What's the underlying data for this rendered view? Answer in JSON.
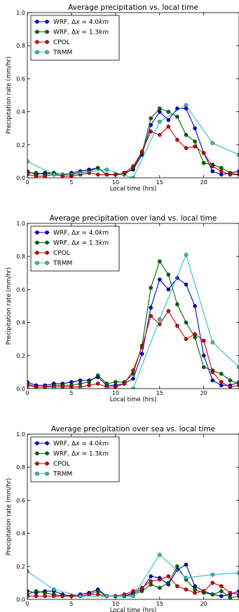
{
  "chart_data": [
    {
      "type": "line",
      "title": "Average precipitation vs. local time",
      "xlabel": "Local time (hrs)",
      "ylabel": "Precipitation rate (mm/hr)",
      "xlim": [
        0,
        24
      ],
      "ylim": [
        0,
        1.0
      ],
      "xticks": [
        "0",
        "5",
        "10",
        "15",
        "20"
      ],
      "yticks": [
        "0.0",
        "0.2",
        "0.4",
        "0.6",
        "0.8",
        "1.0"
      ],
      "legend_position": "top-left",
      "series": [
        {
          "name": "WRF, Δx = 4.0km",
          "color": "#0000cc",
          "x": [
            0,
            1,
            2,
            3,
            4,
            5,
            6,
            7,
            8,
            9,
            10,
            11,
            12,
            13,
            14,
            15,
            16,
            17,
            18,
            19,
            20,
            21,
            22,
            23,
            24
          ],
          "y": [
            0.04,
            0.02,
            0.03,
            0.03,
            0.02,
            0.03,
            0.04,
            0.05,
            0.06,
            0.02,
            0.02,
            0.03,
            0.05,
            0.14,
            0.32,
            0.4,
            0.35,
            0.42,
            0.42,
            0.3,
            0.15,
            0.04,
            0.02,
            0.03,
            0.04
          ]
        },
        {
          "name": "WRF, Δx = 1.3km",
          "color": "#006600",
          "x": [
            0,
            1,
            2,
            3,
            4,
            5,
            6,
            7,
            8,
            9,
            10,
            11,
            12,
            13,
            14,
            15,
            16,
            17,
            18,
            19,
            20,
            21,
            22,
            23,
            24
          ],
          "y": [
            0.03,
            0.03,
            0.02,
            0.03,
            0.02,
            0.02,
            0.03,
            0.04,
            0.06,
            0.02,
            0.02,
            0.02,
            0.06,
            0.15,
            0.36,
            0.42,
            0.4,
            0.37,
            0.26,
            0.22,
            0.09,
            0.08,
            0.06,
            0.03,
            0.02
          ]
        },
        {
          "name": "CPOL",
          "color": "#cc0000",
          "x": [
            0,
            1,
            2,
            3,
            4,
            5,
            6,
            7,
            8,
            9,
            10,
            11,
            12,
            13,
            14,
            15,
            16,
            17,
            18,
            19,
            20,
            21,
            22,
            23,
            24
          ],
          "y": [
            0.02,
            0.01,
            0.01,
            0.02,
            0.01,
            0.01,
            0.02,
            0.03,
            0.02,
            0.02,
            0.02,
            0.03,
            0.07,
            0.16,
            0.28,
            0.26,
            0.31,
            0.23,
            0.18,
            0.19,
            0.15,
            0.07,
            0.04,
            0.02,
            0.02
          ]
        },
        {
          "name": "TRMM",
          "color": "#33bbbb",
          "x": [
            0,
            3,
            6,
            9,
            12,
            15,
            18,
            21,
            24
          ],
          "y": [
            0.1,
            0.02,
            0.03,
            0.05,
            0.0,
            0.34,
            0.44,
            0.21,
            0.14
          ]
        }
      ]
    },
    {
      "type": "line",
      "title": "Average precipitation over land vs. local time",
      "xlabel": "Local time (hrs)",
      "ylabel": "Precipitation rate (mm/hr)",
      "xlim": [
        0,
        24
      ],
      "ylim": [
        0,
        1.0
      ],
      "xticks": [
        "0",
        "5",
        "10",
        "15",
        "20"
      ],
      "yticks": [
        "0.0",
        "0.2",
        "0.4",
        "0.6",
        "0.8",
        "1.0"
      ],
      "legend_position": "top-left",
      "series": [
        {
          "name": "WRF, Δx = 4.0km",
          "color": "#0000cc",
          "x": [
            0,
            1,
            2,
            3,
            4,
            5,
            6,
            7,
            8,
            9,
            10,
            11,
            12,
            13,
            14,
            15,
            16,
            17,
            18,
            19,
            20,
            21,
            22,
            23,
            24
          ],
          "y": [
            0.04,
            0.02,
            0.02,
            0.03,
            0.03,
            0.04,
            0.05,
            0.05,
            0.07,
            0.02,
            0.02,
            0.03,
            0.06,
            0.21,
            0.49,
            0.66,
            0.6,
            0.67,
            0.63,
            0.5,
            0.2,
            0.05,
            0.02,
            0.02,
            0.04
          ]
        },
        {
          "name": "WRF, Δx = 1.3km",
          "color": "#006600",
          "x": [
            0,
            1,
            2,
            3,
            4,
            5,
            6,
            7,
            8,
            9,
            10,
            11,
            12,
            13,
            14,
            15,
            16,
            17,
            18,
            19,
            20,
            21,
            22,
            23,
            24
          ],
          "y": [
            0.03,
            0.01,
            0.01,
            0.02,
            0.02,
            0.02,
            0.03,
            0.04,
            0.08,
            0.03,
            0.04,
            0.04,
            0.09,
            0.26,
            0.61,
            0.77,
            0.69,
            0.51,
            0.4,
            0.31,
            0.13,
            0.11,
            0.09,
            0.05,
            0.03
          ]
        },
        {
          "name": "CPOL",
          "color": "#cc0000",
          "x": [
            0,
            1,
            2,
            3,
            4,
            5,
            6,
            7,
            8,
            9,
            10,
            11,
            12,
            13,
            14,
            15,
            16,
            17,
            18,
            19,
            20,
            21,
            22,
            23,
            24
          ],
          "y": [
            0.02,
            0.01,
            0.01,
            0.01,
            0.01,
            0.01,
            0.01,
            0.02,
            0.03,
            0.01,
            0.01,
            0.03,
            0.11,
            0.25,
            0.44,
            0.39,
            0.47,
            0.38,
            0.3,
            0.33,
            0.29,
            0.1,
            0.04,
            0.01,
            0.02
          ]
        },
        {
          "name": "TRMM",
          "color": "#33bbbb",
          "x": [
            0,
            3,
            6,
            9,
            12,
            15,
            18,
            21,
            24
          ],
          "y": [
            0.0,
            0.0,
            0.0,
            0.0,
            0.0,
            0.42,
            0.81,
            0.28,
            0.13
          ]
        }
      ]
    },
    {
      "type": "line",
      "title": "Average precipitation over sea vs. local time",
      "xlabel": "Local time (hrs)",
      "ylabel": "Precipitation rate (mm/hr)",
      "xlim": [
        0,
        24
      ],
      "ylim": [
        0,
        1.0
      ],
      "xticks": [
        "0",
        "5",
        "10",
        "15",
        "20"
      ],
      "yticks": [
        "0.0",
        "0.2",
        "0.4",
        "0.6",
        "0.8",
        "1.0"
      ],
      "legend_position": "top-left",
      "series": [
        {
          "name": "WRF, Δx = 4.0km",
          "color": "#0000cc",
          "x": [
            0,
            1,
            2,
            3,
            4,
            5,
            6,
            7,
            8,
            9,
            10,
            11,
            12,
            13,
            14,
            15,
            16,
            17,
            18,
            19,
            20,
            21,
            22,
            23,
            24
          ],
          "y": [
            0.05,
            0.04,
            0.05,
            0.05,
            0.03,
            0.02,
            0.03,
            0.04,
            0.06,
            0.02,
            0.02,
            0.02,
            0.04,
            0.06,
            0.14,
            0.13,
            0.09,
            0.18,
            0.21,
            0.08,
            0.05,
            0.03,
            0.02,
            0.03,
            0.05
          ]
        },
        {
          "name": "WRF, Δx = 1.3km",
          "color": "#006600",
          "x": [
            0,
            1,
            2,
            3,
            4,
            5,
            6,
            7,
            8,
            9,
            10,
            11,
            12,
            13,
            14,
            15,
            16,
            17,
            18,
            19,
            20,
            21,
            22,
            23,
            24
          ],
          "y": [
            0.03,
            0.05,
            0.04,
            0.03,
            0.02,
            0.02,
            0.02,
            0.03,
            0.05,
            0.02,
            0.02,
            0.02,
            0.03,
            0.05,
            0.09,
            0.07,
            0.1,
            0.2,
            0.12,
            0.06,
            0.04,
            0.03,
            0.05,
            0.01,
            0.02
          ]
        },
        {
          "name": "CPOL",
          "color": "#cc0000",
          "x": [
            0,
            1,
            2,
            3,
            4,
            5,
            6,
            7,
            8,
            9,
            10,
            11,
            12,
            13,
            14,
            15,
            16,
            17,
            18,
            19,
            20,
            21,
            22,
            23,
            24
          ],
          "y": [
            0.02,
            0.02,
            0.02,
            0.02,
            0.02,
            0.02,
            0.02,
            0.03,
            0.03,
            0.02,
            0.02,
            0.03,
            0.05,
            0.07,
            0.11,
            0.12,
            0.14,
            0.08,
            0.06,
            0.04,
            0.05,
            0.1,
            0.08,
            0.04,
            0.03
          ]
        },
        {
          "name": "TRMM",
          "color": "#33bbbb",
          "x": [
            0,
            3,
            6,
            9,
            12,
            15,
            18,
            21,
            24
          ],
          "y": [
            0.17,
            0.06,
            0.02,
            0.02,
            0.02,
            0.27,
            0.13,
            0.15,
            0.16
          ]
        }
      ]
    }
  ]
}
